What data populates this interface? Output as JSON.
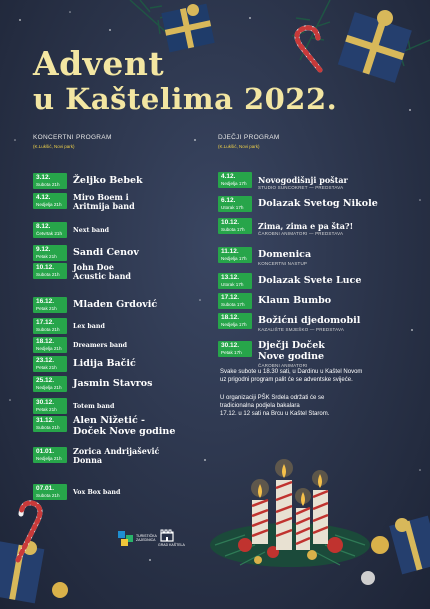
{
  "title": {
    "line1": "Advent",
    "line2": "u Kaštelima 2022."
  },
  "concert": {
    "heading": "KONCERTNI PROGRAM",
    "location": "(K.Lukšić, Novi park)",
    "events": [
      {
        "date": "3.12.",
        "day": "Subota 21h",
        "lines": [
          "Željko Bebek"
        ]
      },
      {
        "date": "4.12.",
        "day": "Nedjelja 21h",
        "lines": [
          "Miro Boem i",
          "Aritmija band"
        ]
      },
      {
        "date": "8.12.",
        "day": "Četvrtak 21h",
        "lines": [
          "Next band"
        ]
      },
      {
        "date": "9.12.",
        "day": "Petak 21h",
        "lines": [
          "Sandi Cenov"
        ]
      },
      {
        "date": "10.12.",
        "day": "Subota 21h",
        "lines": [
          "John Doe",
          "Acustic band"
        ]
      },
      {
        "date": "16.12.",
        "day": "Petak 21h",
        "lines": [
          "Mladen Grdović"
        ]
      },
      {
        "date": "17.12.",
        "day": "Subota 21h",
        "lines": [
          "Lex band"
        ]
      },
      {
        "date": "18.12.",
        "day": "Nedjelja 21h",
        "lines": [
          "Dreamers band"
        ]
      },
      {
        "date": "23.12.",
        "day": "Petak 21h",
        "lines": [
          "Lidija Bačić"
        ]
      },
      {
        "date": "25.12.",
        "day": "Nedjelja 21h",
        "lines": [
          "Jasmin Stavros"
        ]
      },
      {
        "date": "30.12.",
        "day": "Petak 21h",
        "lines": [
          "Totem band"
        ]
      },
      {
        "date": "31.12.",
        "day": "Subota 21h",
        "lines": [
          "Alen Nižetić -",
          "Doček Nove godine"
        ]
      },
      {
        "date": "01.01.",
        "day": "Nedjelja 21h",
        "lines": [
          "Zorica Andrijašević",
          "Donna"
        ]
      },
      {
        "date": "07.01.",
        "day": "Subota 21h",
        "lines": [
          "Vox Box band"
        ]
      }
    ]
  },
  "kids": {
    "heading": "DJEČJI PROGRAM",
    "location": "(K.Lukšić, Novi park)",
    "events": [
      {
        "date": "4.12.",
        "day": "Nedjelja 17h",
        "lines": [
          "Novogodišnji poštar"
        ],
        "sub": "STUDIO SUNCOKRET — PREDSTAVA"
      },
      {
        "date": "6.12.",
        "day": "Utorak 17h",
        "lines": [
          "Dolazak Svetog Nikole"
        ],
        "sub": ""
      },
      {
        "date": "10.12.",
        "day": "Subota 17h",
        "lines": [
          "Zima, zima e pa šta?!"
        ],
        "sub": "ČAROBNI ANIMATORI — PREDSTAVA"
      },
      {
        "date": "11.12.",
        "day": "Nedjelja 17h",
        "lines": [
          "Domenica"
        ],
        "sub": "KONCERTNI NASTUP"
      },
      {
        "date": "13.12.",
        "day": "Utorak 17h",
        "lines": [
          "Dolazak Svete Luce"
        ],
        "sub": ""
      },
      {
        "date": "17.12.",
        "day": "Subota 17h",
        "lines": [
          "Klaun Bumbo"
        ],
        "sub": ""
      },
      {
        "date": "18.12.",
        "day": "Nedjelja 17h",
        "lines": [
          "Božićni djedomobil"
        ],
        "sub": "KAZALIŠTE SMJEŠKO — PREDSTAVA"
      },
      {
        "date": "30.12.",
        "day": "Petak 17h",
        "lines": [
          "Dječji Doček",
          "Nove godine"
        ],
        "sub": "ČAROBNI ANIMATORI"
      }
    ]
  },
  "notes": {
    "p1": [
      "Svake subote u 18.30 sati, u Dardinu u Kaštel Novom",
      "uz prigodni program palit će se adventske svijeće."
    ],
    "p2": [
      "U organizaciji PŠK Srdela održati će se",
      "tradicionalna podjela bakalara",
      "17.12. u 12 sati na Brcu u Kaštel Starom."
    ]
  },
  "logos": [
    {
      "icon": "tourist-board-icon",
      "text": [
        "TURISTIČKA",
        "ZAJEDNICA"
      ]
    },
    {
      "icon": "city-castle-icon",
      "text": [
        "GRAD KAŠTELA"
      ]
    }
  ],
  "colors": {
    "background": "#2a3349",
    "title": "#f3e6a2",
    "badge": "#27a54a",
    "location": "#f0d24a"
  }
}
